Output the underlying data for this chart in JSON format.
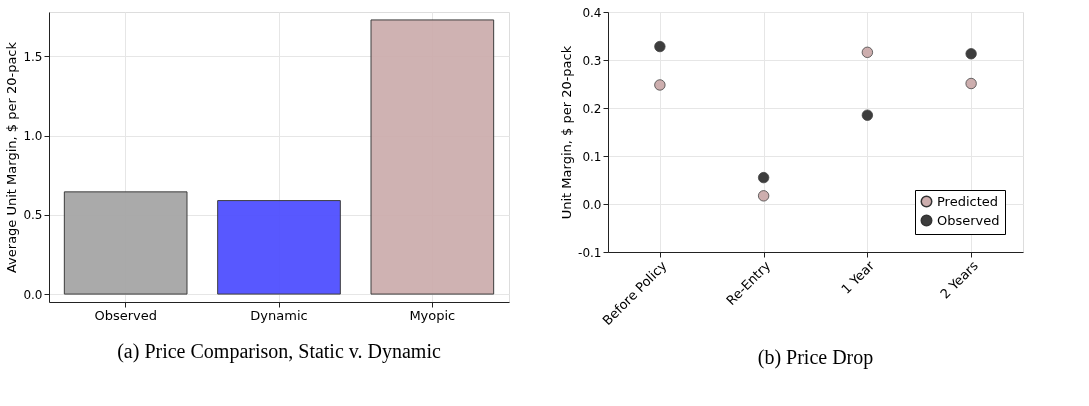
{
  "chart_data": [
    {
      "type": "bar",
      "title": "(a) Price Comparison, Static v. Dynamic",
      "ylabel": "Average Unit Margin, $ per 20-pack",
      "categories": [
        "Observed",
        "Dynamic",
        "Myopic"
      ],
      "values": [
        0.645,
        0.59,
        1.73
      ],
      "colors": [
        "#a6a6a6",
        "#5050ff",
        "#cdaeae"
      ],
      "ylim": [
        -0.05,
        1.78
      ],
      "yticks": [
        {
          "value": 0,
          "label": "0.0"
        },
        0.5,
        {
          "value": 1,
          "label": "1.0"
        },
        1.5
      ],
      "grid": true,
      "legend": false
    },
    {
      "type": "scatter",
      "title": "(b) Price Drop",
      "ylabel": "Unit Margin, $ per 20-pack",
      "categories": [
        "Before Policy",
        "Re-Entry",
        "1 Year",
        "2 Years"
      ],
      "series": [
        {
          "name": "Predicted",
          "color": "#cdaeae",
          "values": [
            0.248,
            0.017,
            0.316,
            0.251
          ]
        },
        {
          "name": "Observed",
          "color": "#3d3d3d",
          "values": [
            0.328,
            0.055,
            0.185,
            0.313
          ]
        }
      ],
      "ylim": [
        -0.1,
        0.4
      ],
      "yticks": [
        -0.1,
        {
          "value": 0,
          "label": "0.0"
        },
        0.1,
        0.2,
        0.3,
        0.4
      ],
      "grid": true,
      "legend": "bottom right",
      "marker": "circle"
    }
  ]
}
